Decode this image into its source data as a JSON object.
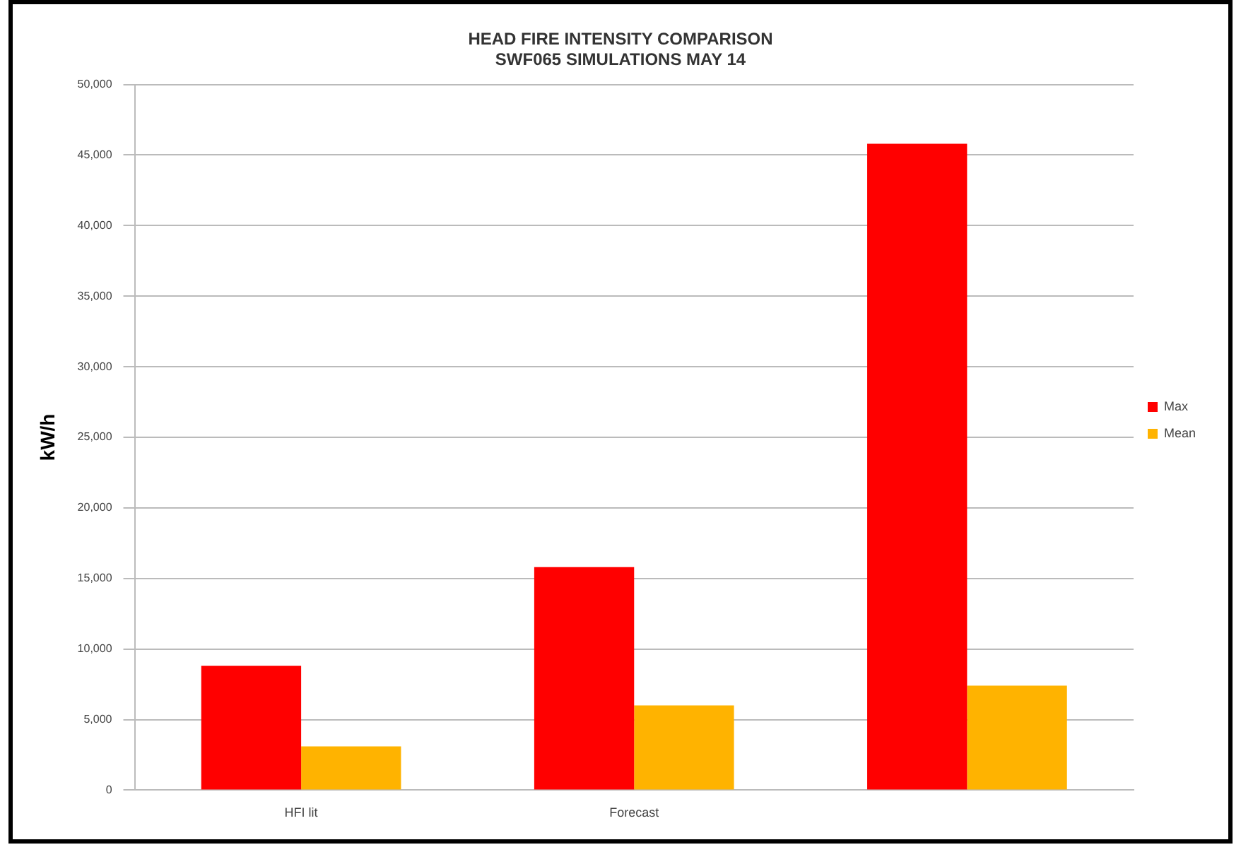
{
  "chart_data": {
    "type": "bar",
    "title": [
      "HEAD FIRE INTENSITY COMPARISON",
      "SWF065 SIMULATIONS MAY 14"
    ],
    "ylabel": "kW/h",
    "categories": [
      "HFI lit",
      "Forecast",
      null
    ],
    "series": [
      {
        "name": "Max",
        "color": "#ff0000",
        "values": [
          8800,
          15800,
          45800
        ]
      },
      {
        "name": "Mean",
        "color": "#ffb300",
        "values": [
          3100,
          6000,
          7400
        ]
      }
    ],
    "ylim": [
      0,
      50000
    ],
    "yticks": [
      0,
      {
        "value": 5000,
        "label": "5,000"
      },
      {
        "value": 10000,
        "label": "10,000"
      },
      {
        "value": 15000,
        "label": "15,000"
      },
      {
        "value": 20000,
        "label": "20,000"
      },
      {
        "value": 25000,
        "label": "25,000"
      },
      {
        "value": 30000,
        "label": "30,000"
      },
      {
        "value": 35000,
        "label": "35,000"
      },
      {
        "value": 40000,
        "label": "40,000"
      },
      {
        "value": 45000,
        "label": "45,000"
      },
      {
        "value": 50000,
        "label": "50,000"
      }
    ],
    "grid": "y",
    "legend": "right"
  }
}
